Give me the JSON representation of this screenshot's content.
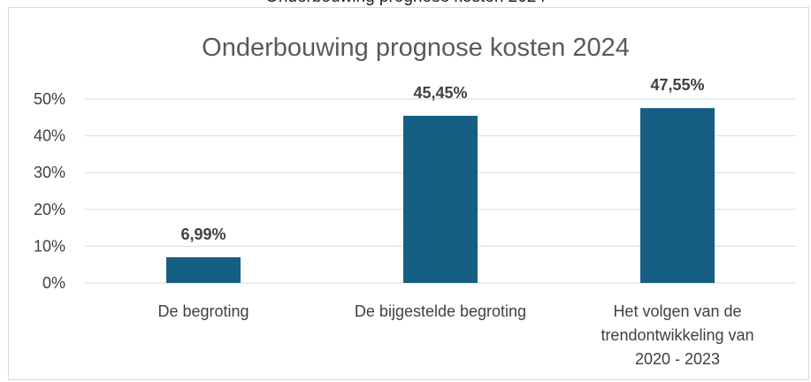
{
  "colors": {
    "bar": "#165e83",
    "gridline": "#d9d9d9",
    "axis_text": "#404040",
    "title_text": "#595959"
  },
  "chart_data": {
    "type": "bar",
    "title": "Onderbouwing prognose kosten 2024",
    "categories": [
      [
        "De begroting"
      ],
      [
        "De bijgestelde begroting"
      ],
      [
        "Het volgen van de",
        "trendontwikkeling van",
        "2020 - 2023"
      ]
    ],
    "values": [
      6.99,
      45.45,
      47.55
    ],
    "data_labels": [
      "6,99%",
      "45,45%",
      "47,55%"
    ],
    "ylim": [
      0,
      50
    ],
    "yticks": [
      0,
      10,
      20,
      30,
      40,
      50
    ],
    "ytick_labels": [
      "0%",
      "10%",
      "20%",
      "30%",
      "40%",
      "50%"
    ],
    "xlabel": "",
    "ylabel": "",
    "grid": true,
    "legend": "none"
  }
}
